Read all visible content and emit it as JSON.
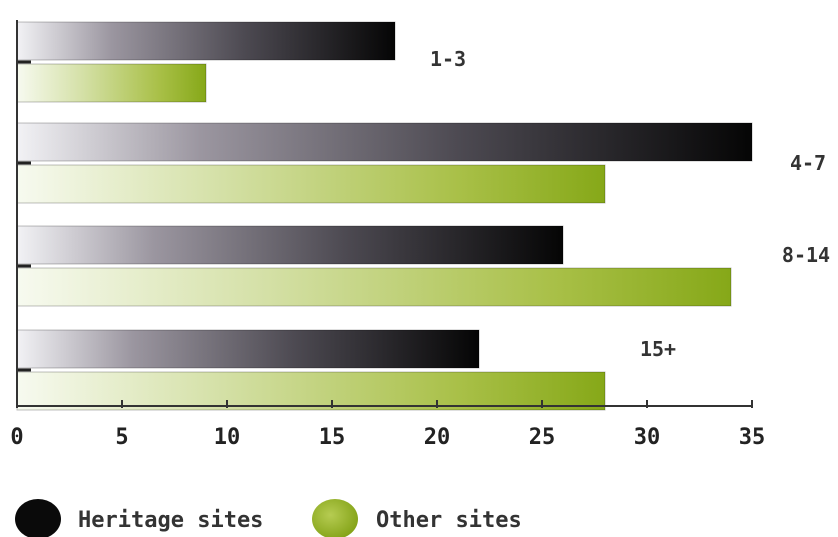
{
  "chart_data": {
    "type": "bar",
    "orientation": "horizontal",
    "title": "",
    "xlabel": "",
    "ylabel": "",
    "categories": [
      "1-3",
      "4-7",
      "8-14",
      "15+"
    ],
    "series": [
      {
        "name": "Heritage sites",
        "values": [
          18,
          35,
          26,
          22
        ],
        "color": "#111111"
      },
      {
        "name": "Other sites",
        "values": [
          9,
          28,
          34,
          28
        ],
        "color": "#8fae1b"
      }
    ],
    "xlim": [
      0,
      35
    ],
    "xticks": [
      "0",
      "5",
      "10",
      "15",
      "20",
      "25",
      "30",
      "35"
    ],
    "grid": false,
    "legend_position": "bottom-left"
  }
}
